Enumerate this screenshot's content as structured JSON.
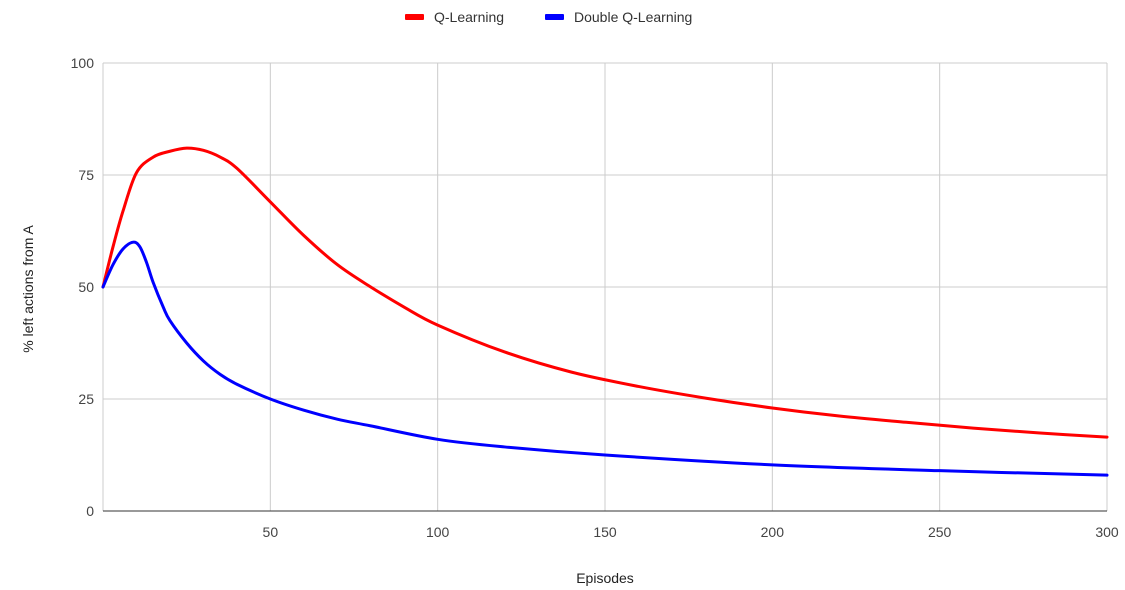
{
  "chart_data": {
    "type": "line",
    "title": "",
    "xlabel": "Episodes",
    "ylabel": "% left actions from A",
    "xlim": [
      0,
      300
    ],
    "ylim": [
      0,
      100
    ],
    "x_ticks": [
      50,
      100,
      150,
      200,
      250,
      300
    ],
    "y_ticks": [
      0,
      25,
      50,
      75,
      100
    ],
    "grid": true,
    "legend_position": "top-center",
    "series": [
      {
        "name": "Q-Learning",
        "color": "#ff0000",
        "x": [
          0,
          3,
          6,
          10,
          15,
          20,
          25,
          30,
          35,
          40,
          50,
          60,
          70,
          80,
          90,
          100,
          120,
          140,
          160,
          180,
          200,
          220,
          240,
          260,
          280,
          300
        ],
        "y": [
          50,
          59,
          67,
          75.5,
          79,
          80.3,
          81,
          80.5,
          79,
          76.5,
          69,
          61.5,
          55,
          50,
          45.5,
          41.5,
          35.5,
          31,
          27.8,
          25.2,
          23,
          21.2,
          19.8,
          18.5,
          17.4,
          16.5
        ]
      },
      {
        "name": "Double Q-Learning",
        "color": "#0000ff",
        "x": [
          0,
          3,
          6,
          9,
          11,
          13,
          15,
          18,
          20,
          25,
          30,
          35,
          40,
          50,
          60,
          70,
          80,
          100,
          120,
          150,
          200,
          250,
          300
        ],
        "y": [
          50,
          55,
          58.5,
          60,
          59,
          55.5,
          51,
          45.5,
          42.5,
          37.5,
          33.5,
          30.5,
          28.3,
          25,
          22.5,
          20.5,
          19,
          16,
          14.3,
          12.5,
          10.3,
          9,
          8
        ]
      }
    ]
  }
}
